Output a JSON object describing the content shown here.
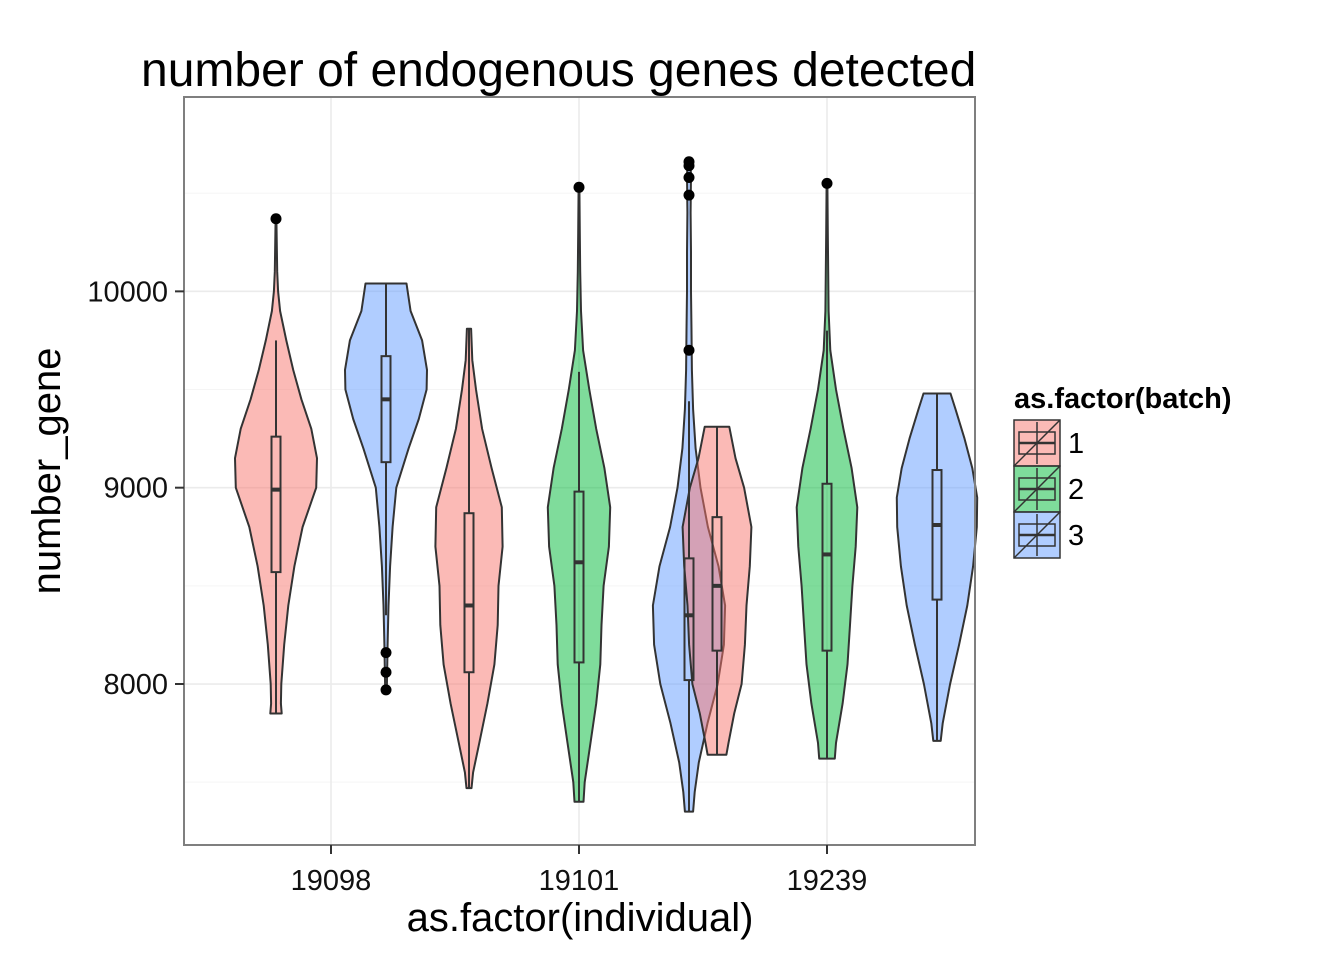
{
  "chart_data": {
    "type": "violin",
    "title": "number of endogenous genes detected",
    "xlabel": "as.factor(individual)",
    "ylabel": "number_gene",
    "categories": [
      "19098",
      "19101",
      "19239"
    ],
    "ylim": [
      7180,
      10990
    ],
    "yticks": [
      8000,
      9000,
      10000
    ],
    "grid": true,
    "legend": {
      "title": "as.factor(batch)",
      "position": "right",
      "entries": [
        {
          "label": "1",
          "color": "#F8766D"
        },
        {
          "label": "2",
          "color": "#00BA38"
        },
        {
          "label": "3",
          "color": "#619CFF"
        }
      ]
    },
    "groups": [
      {
        "individual": "19098",
        "batch": "1",
        "color": "#F8766D",
        "min": 7850,
        "max": 10370,
        "box": {
          "q1": 8570,
          "median": 8990,
          "q3": 9260,
          "whisker_low": 7850,
          "whisker_high": 9750
        },
        "outliers": [
          10370
        ],
        "density": [
          [
            7850,
            0.14
          ],
          [
            7900,
            0.12
          ],
          [
            8000,
            0.13
          ],
          [
            8200,
            0.2
          ],
          [
            8400,
            0.3
          ],
          [
            8600,
            0.45
          ],
          [
            8800,
            0.65
          ],
          [
            9000,
            0.98
          ],
          [
            9150,
            1.0
          ],
          [
            9300,
            0.86
          ],
          [
            9450,
            0.62
          ],
          [
            9600,
            0.42
          ],
          [
            9750,
            0.25
          ],
          [
            9900,
            0.1
          ],
          [
            10000,
            0.05
          ],
          [
            10100,
            0.03
          ],
          [
            10370,
            0.01
          ]
        ]
      },
      {
        "individual": "19098",
        "batch": "3",
        "color": "#619CFF",
        "min": 7960,
        "max": 10040,
        "box": {
          "q1": 9130,
          "median": 9450,
          "q3": 9670,
          "whisker_low": 8350,
          "whisker_high": 10040
        },
        "outliers": [
          8160,
          8060,
          7970
        ],
        "density": [
          [
            7960,
            0.02
          ],
          [
            8200,
            0.04
          ],
          [
            8400,
            0.06
          ],
          [
            8600,
            0.1
          ],
          [
            8800,
            0.16
          ],
          [
            9000,
            0.25
          ],
          [
            9200,
            0.55
          ],
          [
            9350,
            0.8
          ],
          [
            9500,
            0.99
          ],
          [
            9600,
            1.0
          ],
          [
            9750,
            0.88
          ],
          [
            9900,
            0.6
          ],
          [
            10040,
            0.5
          ]
        ]
      },
      {
        "individual": "19101",
        "batch": "1",
        "color": "#F8766D",
        "min": 7470,
        "max": 9810,
        "box": {
          "q1": 8060,
          "median": 8400,
          "q3": 8870,
          "whisker_low": 7470,
          "whisker_high": 9810
        },
        "outliers": [],
        "density": [
          [
            7470,
            0.06
          ],
          [
            7550,
            0.1
          ],
          [
            7700,
            0.25
          ],
          [
            7900,
            0.45
          ],
          [
            8100,
            0.62
          ],
          [
            8300,
            0.7
          ],
          [
            8500,
            0.72
          ],
          [
            8700,
            0.82
          ],
          [
            8900,
            0.8
          ],
          [
            9100,
            0.55
          ],
          [
            9300,
            0.32
          ],
          [
            9500,
            0.17
          ],
          [
            9650,
            0.08
          ],
          [
            9810,
            0.05
          ]
        ]
      },
      {
        "individual": "19101",
        "batch": "2",
        "color": "#00BA38",
        "min": 7400,
        "max": 10530,
        "box": {
          "q1": 8110,
          "median": 8620,
          "q3": 8980,
          "whisker_low": 7400,
          "whisker_high": 9590
        },
        "outliers": [
          10530
        ],
        "density": [
          [
            7400,
            0.11
          ],
          [
            7500,
            0.14
          ],
          [
            7700,
            0.28
          ],
          [
            7900,
            0.42
          ],
          [
            8100,
            0.52
          ],
          [
            8300,
            0.55
          ],
          [
            8500,
            0.6
          ],
          [
            8700,
            0.73
          ],
          [
            8900,
            0.76
          ],
          [
            9100,
            0.62
          ],
          [
            9300,
            0.42
          ],
          [
            9500,
            0.25
          ],
          [
            9700,
            0.1
          ],
          [
            9900,
            0.05
          ],
          [
            10100,
            0.03
          ],
          [
            10300,
            0.02
          ],
          [
            10530,
            0.01
          ]
        ]
      },
      {
        "individual": "19101",
        "batch": "3",
        "color": "#619CFF",
        "min": 7350,
        "max": 10660,
        "box": {
          "q1": 8020,
          "median": 8350,
          "q3": 8640,
          "whisker_low": 7350,
          "whisker_high": 9440
        },
        "outliers": [
          9700,
          10490,
          10580,
          10640,
          10660
        ],
        "density": [
          [
            7350,
            0.1
          ],
          [
            7450,
            0.14
          ],
          [
            7600,
            0.24
          ],
          [
            7800,
            0.45
          ],
          [
            8000,
            0.7
          ],
          [
            8200,
            0.85
          ],
          [
            8400,
            0.88
          ],
          [
            8600,
            0.72
          ],
          [
            8800,
            0.46
          ],
          [
            9000,
            0.28
          ],
          [
            9200,
            0.16
          ],
          [
            9400,
            0.1
          ],
          [
            9600,
            0.07
          ],
          [
            9800,
            0.06
          ],
          [
            10000,
            0.05
          ],
          [
            10200,
            0.05
          ],
          [
            10400,
            0.04
          ],
          [
            10600,
            0.05
          ],
          [
            10660,
            0.02
          ]
        ]
      },
      {
        "individual": "19239",
        "batch": "1",
        "color": "#F8766D",
        "min": 7640,
        "max": 9310,
        "box": {
          "q1": 8170,
          "median": 8500,
          "q3": 8850,
          "whisker_low": 7640,
          "whisker_high": 9310
        },
        "outliers": [],
        "density": [
          [
            7640,
            0.23
          ],
          [
            7700,
            0.28
          ],
          [
            7850,
            0.42
          ],
          [
            8000,
            0.6
          ],
          [
            8200,
            0.68
          ],
          [
            8400,
            0.72
          ],
          [
            8600,
            0.8
          ],
          [
            8800,
            0.84
          ],
          [
            9000,
            0.66
          ],
          [
            9150,
            0.45
          ],
          [
            9310,
            0.3
          ]
        ]
      },
      {
        "individual": "19239",
        "batch": "2",
        "color": "#00BA38",
        "min": 7620,
        "max": 10550,
        "box": {
          "q1": 8170,
          "median": 8660,
          "q3": 9020,
          "whisker_low": 7620,
          "whisker_high": 9800
        },
        "outliers": [
          10550
        ],
        "density": [
          [
            7620,
            0.19
          ],
          [
            7700,
            0.22
          ],
          [
            7900,
            0.38
          ],
          [
            8100,
            0.5
          ],
          [
            8300,
            0.56
          ],
          [
            8500,
            0.62
          ],
          [
            8700,
            0.7
          ],
          [
            8900,
            0.74
          ],
          [
            9100,
            0.6
          ],
          [
            9300,
            0.4
          ],
          [
            9500,
            0.22
          ],
          [
            9700,
            0.08
          ],
          [
            9900,
            0.04
          ],
          [
            10100,
            0.03
          ],
          [
            10300,
            0.02
          ],
          [
            10550,
            0.01
          ]
        ]
      },
      {
        "individual": "19239",
        "batch": "3",
        "color": "#619CFF",
        "min": 7710,
        "max": 9480,
        "box": {
          "q1": 8430,
          "median": 8810,
          "q3": 9090,
          "whisker_low": 7710,
          "whisker_high": 9480
        },
        "outliers": [],
        "density": [
          [
            7710,
            0.09
          ],
          [
            7800,
            0.14
          ],
          [
            8000,
            0.32
          ],
          [
            8200,
            0.54
          ],
          [
            8400,
            0.74
          ],
          [
            8600,
            0.88
          ],
          [
            8800,
            0.97
          ],
          [
            8950,
            0.98
          ],
          [
            9100,
            0.86
          ],
          [
            9250,
            0.67
          ],
          [
            9400,
            0.45
          ],
          [
            9480,
            0.33
          ]
        ]
      }
    ]
  }
}
